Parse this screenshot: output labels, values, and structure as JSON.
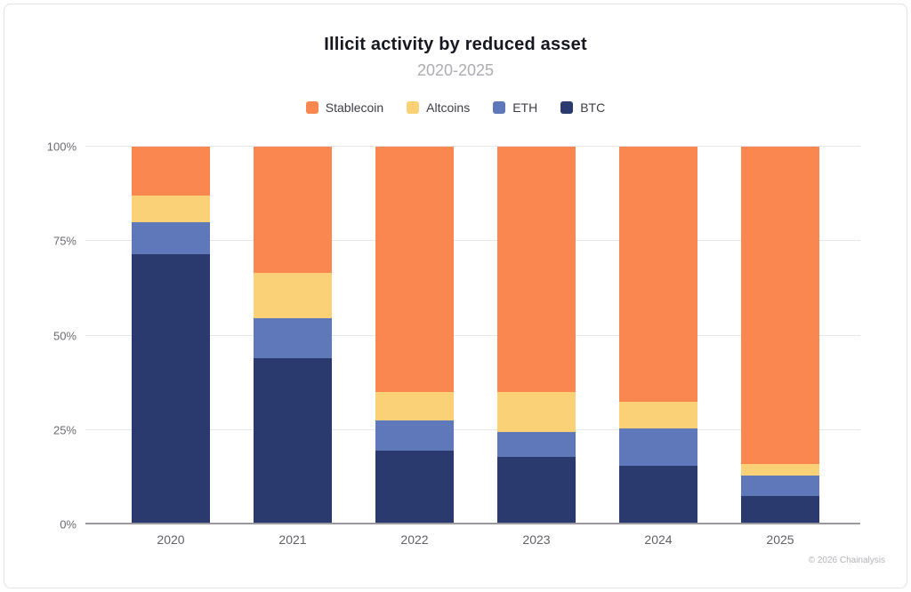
{
  "header": {
    "title": "Illicit activity by reduced asset",
    "subtitle": "2020-2025"
  },
  "footer": {
    "credit": "© 2026 Chainalysis"
  },
  "colors": {
    "stablecoin": "#FA8750",
    "altcoins": "#FAD177",
    "eth": "#5E78BA",
    "btc": "#2B3A6E",
    "gridline": "#E6E6E8",
    "axis_line": "#98989E"
  },
  "chart_data": {
    "type": "bar",
    "stacked": true,
    "unit": "%",
    "title": "Illicit activity by reduced asset",
    "subtitle": "2020-2025",
    "xlabel": "",
    "ylabel": "",
    "ylim": [
      0,
      100
    ],
    "yticks": [
      "0%",
      "25%",
      "50%",
      "75%",
      "100%"
    ],
    "grid": true,
    "legend_position": "top",
    "categories": [
      "2020",
      "2021",
      "2022",
      "2023",
      "2024",
      "2025"
    ],
    "series": [
      {
        "name": "Stablecoin",
        "color": "#FA8750",
        "values": [
          13,
          33.5,
          65,
          65,
          67.5,
          84
        ]
      },
      {
        "name": "Altcoins",
        "color": "#FAD177",
        "values": [
          7,
          12,
          7.5,
          10.5,
          7,
          3
        ]
      },
      {
        "name": "ETH",
        "color": "#5E78BA",
        "values": [
          8.5,
          10.5,
          8,
          6.5,
          10,
          5.5
        ]
      },
      {
        "name": "BTC",
        "color": "#2B3A6E",
        "values": [
          71.5,
          44,
          19.5,
          18,
          15.5,
          7.5
        ]
      }
    ]
  }
}
